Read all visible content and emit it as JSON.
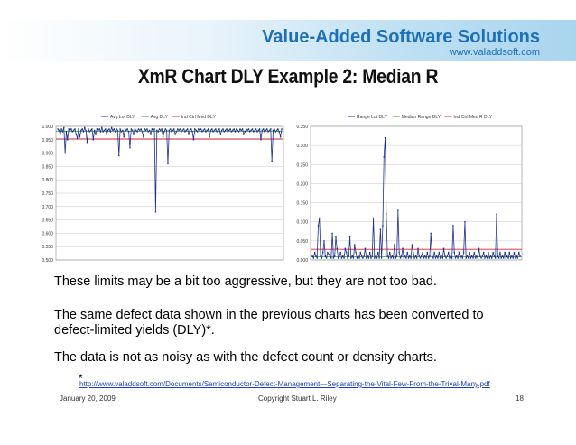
{
  "brand": {
    "name": "Value-Added Software Solutions",
    "url": "www.valaddsoft.com"
  },
  "slide": {
    "title": "XmR Chart DLY Example 2:  Median R"
  },
  "chart_data": [
    {
      "type": "line",
      "legend": [
        "Avg Lot DLY",
        "Avg DLY",
        "Ind Ctrl Med DLY"
      ],
      "legend_position": "top-center",
      "ylim": [
        0.5,
        1.0
      ],
      "yticks": [
        "1.000",
        "0.950",
        "0.900",
        "0.850",
        "0.800",
        "0.750",
        "0.700",
        "0.650",
        "0.600",
        "0.550",
        "0.500"
      ],
      "grid": true,
      "colors": {
        "lot": "#1f2f8f",
        "avg": "#2e9e2e",
        "ctrl": "#e0202a"
      },
      "avg_line": 0.982,
      "ctrl_line": 0.953,
      "series": [
        {
          "name": "Avg Lot DLY",
          "values": [
            0.99,
            0.985,
            0.97,
            0.99,
            0.98,
            0.995,
            0.9,
            0.98,
            0.95,
            0.99,
            0.985,
            0.99,
            0.98,
            0.985,
            0.99,
            0.97,
            0.955,
            0.99,
            0.96,
            0.985,
            0.99,
            0.98,
            0.995,
            0.985,
            0.94,
            0.99,
            0.98,
            0.985,
            0.99,
            0.95,
            0.985,
            0.97,
            0.99,
            0.985,
            0.99,
            0.98,
            0.995,
            0.98,
            0.985,
            0.99,
            0.97,
            0.985,
            0.99,
            0.98,
            0.995,
            0.985,
            0.99,
            0.98,
            0.99,
            0.985,
            0.89,
            0.99,
            0.98,
            0.985,
            0.96,
            0.99,
            0.985,
            0.99,
            0.98,
            0.92,
            0.99,
            0.985,
            0.97,
            0.99,
            0.985,
            0.98,
            0.99,
            0.985,
            0.99,
            0.98,
            0.96,
            0.99,
            0.985,
            0.99,
            0.98,
            0.985,
            0.97,
            0.99,
            0.985,
            0.99,
            0.68,
            0.985,
            0.98,
            0.99,
            0.985,
            0.99,
            0.96,
            0.98,
            0.99,
            0.985,
            0.86,
            0.985,
            0.99,
            0.98,
            0.985,
            0.99,
            0.97,
            0.98,
            0.99,
            0.985,
            0.99,
            0.98,
            0.985,
            0.99,
            0.98,
            0.985,
            0.99,
            0.97,
            0.985,
            0.99,
            0.98,
            0.95,
            0.99,
            0.985,
            0.98,
            0.99,
            0.985,
            0.99,
            0.98,
            0.985,
            0.99,
            0.98,
            0.985,
            0.99,
            0.96,
            0.985,
            0.99,
            0.98,
            0.985,
            0.99,
            0.98,
            0.985,
            0.99,
            0.97,
            0.985,
            0.99,
            0.98,
            0.985,
            0.99,
            0.98,
            0.985,
            0.99,
            0.98,
            0.985,
            0.99,
            0.98,
            0.99,
            0.985,
            0.98,
            0.99,
            0.985,
            0.99,
            0.97,
            0.98,
            0.99,
            0.985,
            0.99,
            0.98,
            0.985,
            0.99,
            0.98,
            0.985,
            0.99,
            0.98,
            0.985,
            0.99,
            0.95,
            0.985,
            0.99,
            0.98,
            0.985,
            0.99,
            0.98,
            0.985,
            0.99,
            0.87,
            0.985,
            0.99,
            0.98,
            0.985,
            0.99,
            0.98,
            0.96,
            0.99
          ]
        }
      ]
    },
    {
      "type": "line",
      "legend": [
        "Range Lot DLY",
        "Median Range DLY",
        "Ind Ctrl Med R DLY"
      ],
      "legend_position": "top-center",
      "ylim": [
        0.0,
        0.35
      ],
      "yticks": [
        "0.350",
        "0.300",
        "0.250",
        "0.200",
        "0.150",
        "0.100",
        "0.050",
        "0.000"
      ],
      "grid": true,
      "colors": {
        "lot": "#1f2f8f",
        "avg": "#2e9e2e",
        "ctrl": "#e0202a"
      },
      "avg_line": 0.008,
      "ctrl_line": 0.028,
      "series": [
        {
          "name": "Range Lot DLY",
          "values": [
            0.01,
            0.005,
            0.02,
            0.01,
            0.005,
            0.09,
            0.11,
            0.01,
            0.005,
            0.02,
            0.05,
            0.01,
            0.005,
            0.02,
            0.015,
            0.01,
            0.005,
            0.07,
            0.005,
            0.01,
            0.06,
            0.03,
            0.005,
            0.01,
            0.02,
            0.005,
            0.01,
            0.005,
            0.03,
            0.02,
            0.005,
            0.01,
            0.06,
            0.005,
            0.01,
            0.005,
            0.04,
            0.02,
            0.005,
            0.01,
            0.005,
            0.02,
            0.01,
            0.005,
            0.01,
            0.03,
            0.005,
            0.01,
            0.005,
            0.02,
            0.005,
            0.01,
            0.11,
            0.005,
            0.01,
            0.005,
            0.02,
            0.005,
            0.08,
            0.005,
            0.09,
            0.27,
            0.32,
            0.12,
            0.01,
            0.005,
            0.02,
            0.005,
            0.01,
            0.005,
            0.04,
            0.005,
            0.01,
            0.13,
            0.02,
            0.005,
            0.01,
            0.03,
            0.005,
            0.01,
            0.005,
            0.02,
            0.005,
            0.01,
            0.005,
            0.04,
            0.02,
            0.005,
            0.01,
            0.005,
            0.03,
            0.01,
            0.005,
            0.01,
            0.02,
            0.005,
            0.01,
            0.005,
            0.02,
            0.005,
            0.01,
            0.07,
            0.01,
            0.005,
            0.02,
            0.005,
            0.01,
            0.005,
            0.02,
            0.005,
            0.01,
            0.005,
            0.03,
            0.01,
            0.005,
            0.01,
            0.02,
            0.005,
            0.01,
            0.005,
            0.09,
            0.02,
            0.005,
            0.01,
            0.005,
            0.02,
            0.005,
            0.01,
            0.005,
            0.02,
            0.1,
            0.005,
            0.01,
            0.005,
            0.02,
            0.005,
            0.01,
            0.005,
            0.02,
            0.005,
            0.01,
            0.005,
            0.03,
            0.01,
            0.005,
            0.01,
            0.02,
            0.005,
            0.01,
            0.005,
            0.02,
            0.005,
            0.01,
            0.005,
            0.02,
            0.01,
            0.005,
            0.12,
            0.01,
            0.005,
            0.02,
            0.005,
            0.01,
            0.005,
            0.02,
            0.005,
            0.01,
            0.005,
            0.02,
            0.005,
            0.01,
            0.005,
            0.02,
            0.005,
            0.01,
            0.005,
            0.02,
            0.01
          ]
        }
      ]
    }
  ],
  "body": {
    "line1": "These limits may be a bit too aggressive, but they are not too bad.",
    "line2": "The same defect data shown in the previous charts has been converted to",
    "line3": "defect-limited yields (DLY)*.",
    "line4": "The data is not as noisy as with the defect count or density charts."
  },
  "footnote": {
    "marker": "*",
    "link": "http://www.valaddsoft.com/Documents/Semiconductor-Defect-Management—Separating-the-Vital-Few-From-the-Trival-Many.pdf"
  },
  "footer": {
    "date": "January 20, 2009",
    "copyright": "Copyright   Stuart L. Riley",
    "page": "18"
  }
}
